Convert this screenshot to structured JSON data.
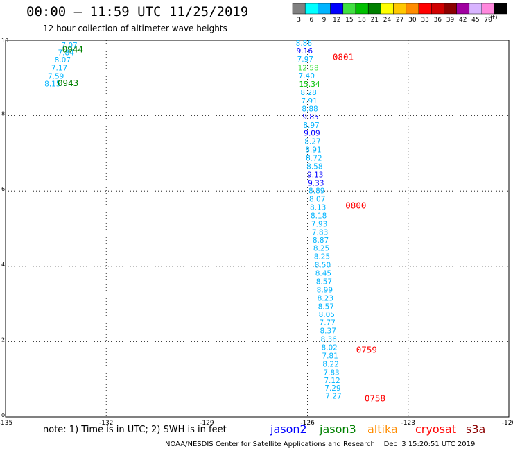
{
  "title": "00:00 — 11:59 UTC 11/25/2019",
  "subtitle": "12 hour collection of altimeter wave heights",
  "color_scale": {
    "units": "(ft)",
    "bins": [
      {
        "label": "3",
        "color": "#808080"
      },
      {
        "label": "6",
        "color": "#00ffff"
      },
      {
        "label": "9",
        "color": "#00b4ff"
      },
      {
        "label": "12",
        "color": "#0000ff"
      },
      {
        "label": "15",
        "color": "#40e040"
      },
      {
        "label": "18",
        "color": "#00c000"
      },
      {
        "label": "21",
        "color": "#008000"
      },
      {
        "label": "24",
        "color": "#ffff00"
      },
      {
        "label": "27",
        "color": "#ffc800"
      },
      {
        "label": "30",
        "color": "#ff8c00"
      },
      {
        "label": "33",
        "color": "#ff0000"
      },
      {
        "label": "36",
        "color": "#d00000"
      },
      {
        "label": "39",
        "color": "#8b0000"
      },
      {
        "label": "42",
        "color": "#a000a0"
      },
      {
        "label": "45",
        "color": "#d8b4ff"
      },
      {
        "label": "70",
        "color": "#ff88dd"
      },
      {
        "label": "",
        "color": "#000000"
      }
    ]
  },
  "note": "note: 1) Time is in UTC; 2) SWH is in feet",
  "satellites": [
    {
      "name": "jason2",
      "color": "#0000ff"
    },
    {
      "name": "jason3",
      "color": "#008000"
    },
    {
      "name": "altika",
      "color": "#ff8c00"
    },
    {
      "name": "cryosat",
      "color": "#ff0000"
    },
    {
      "name": "s3a",
      "color": "#8b0000"
    }
  ],
  "footer": "NOAA/NESDIS Center for Satellite Applications and Research    Dec  3 15:20:51 UTC 2019",
  "chart_data": {
    "type": "scatter",
    "xlim": [
      -135,
      -120
    ],
    "ylim": [
      0,
      10
    ],
    "x_ticks": [
      "-135",
      "-132",
      "-129",
      "-126",
      "-123",
      "-120"
    ],
    "y_ticks": [
      "0",
      "2",
      "4",
      "6",
      "8",
      "10"
    ],
    "grid": true,
    "points": [
      {
        "x": -133.34,
        "y": 9.87,
        "label": "7.07",
        "color": "#00b4ff"
      },
      {
        "x": -133.44,
        "y": 9.68,
        "label": "7.84",
        "color": "#00b4ff"
      },
      {
        "x": -133.54,
        "y": 9.48,
        "label": "8.07",
        "color": "#00b4ff"
      },
      {
        "x": -133.64,
        "y": 9.27,
        "label": "7.17",
        "color": "#00b4ff"
      },
      {
        "x": -133.74,
        "y": 9.05,
        "label": "7.59",
        "color": "#00b4ff"
      },
      {
        "x": -133.84,
        "y": 8.85,
        "label": "8.15",
        "color": "#00b4ff"
      },
      {
        "x": -126.35,
        "y": 9.93,
        "label": "8.86",
        "color": "#00b4ff"
      },
      {
        "x": -126.33,
        "y": 9.72,
        "label": "9.16",
        "color": "#0000ff"
      },
      {
        "x": -126.31,
        "y": 9.5,
        "label": "7.97",
        "color": "#00b4ff"
      },
      {
        "x": -126.29,
        "y": 9.27,
        "label": "12.58",
        "color": "#40e040"
      },
      {
        "x": -126.27,
        "y": 9.06,
        "label": "7.40",
        "color": "#00b4ff"
      },
      {
        "x": -126.25,
        "y": 8.84,
        "label": "15.34",
        "color": "#00c000"
      },
      {
        "x": -126.21,
        "y": 8.62,
        "label": "8.28",
        "color": "#00b4ff"
      },
      {
        "x": -126.19,
        "y": 8.4,
        "label": "7.91",
        "color": "#00b4ff"
      },
      {
        "x": -126.17,
        "y": 8.19,
        "label": "8.88",
        "color": "#00b4ff"
      },
      {
        "x": -126.15,
        "y": 7.97,
        "label": "9.85",
        "color": "#0000ff"
      },
      {
        "x": -126.13,
        "y": 7.75,
        "label": "8.97",
        "color": "#00b4ff"
      },
      {
        "x": -126.11,
        "y": 7.54,
        "label": "9.09",
        "color": "#0000ff"
      },
      {
        "x": -126.09,
        "y": 7.32,
        "label": "8.27",
        "color": "#00b4ff"
      },
      {
        "x": -126.07,
        "y": 7.1,
        "label": "8.91",
        "color": "#00b4ff"
      },
      {
        "x": -126.05,
        "y": 6.88,
        "label": "8.72",
        "color": "#00b4ff"
      },
      {
        "x": -126.03,
        "y": 6.66,
        "label": "8.58",
        "color": "#00b4ff"
      },
      {
        "x": -126.01,
        "y": 6.44,
        "label": "9.13",
        "color": "#0000ff"
      },
      {
        "x": -125.99,
        "y": 6.22,
        "label": "9.33",
        "color": "#0000ff"
      },
      {
        "x": -125.97,
        "y": 6.01,
        "label": "8.89",
        "color": "#00b4ff"
      },
      {
        "x": -125.95,
        "y": 5.79,
        "label": "8.07",
        "color": "#00b4ff"
      },
      {
        "x": -125.93,
        "y": 5.57,
        "label": "8.13",
        "color": "#00b4ff"
      },
      {
        "x": -125.91,
        "y": 5.35,
        "label": "8.18",
        "color": "#00b4ff"
      },
      {
        "x": -125.89,
        "y": 5.13,
        "label": "7.93",
        "color": "#00b4ff"
      },
      {
        "x": -125.87,
        "y": 4.91,
        "label": "7.83",
        "color": "#00b4ff"
      },
      {
        "x": -125.85,
        "y": 4.7,
        "label": "8.87",
        "color": "#00b4ff"
      },
      {
        "x": -125.83,
        "y": 4.48,
        "label": "8.25",
        "color": "#00b4ff"
      },
      {
        "x": -125.81,
        "y": 4.26,
        "label": "8.25",
        "color": "#00b4ff"
      },
      {
        "x": -125.79,
        "y": 4.04,
        "label": "8.50",
        "color": "#00b4ff"
      },
      {
        "x": -125.77,
        "y": 3.82,
        "label": "8.45",
        "color": "#00b4ff"
      },
      {
        "x": -125.75,
        "y": 3.6,
        "label": "8.57",
        "color": "#00b4ff"
      },
      {
        "x": -125.73,
        "y": 3.38,
        "label": "8.99",
        "color": "#00b4ff"
      },
      {
        "x": -125.71,
        "y": 3.16,
        "label": "8.23",
        "color": "#00b4ff"
      },
      {
        "x": -125.69,
        "y": 2.94,
        "label": "8.57",
        "color": "#00b4ff"
      },
      {
        "x": -125.67,
        "y": 2.73,
        "label": "8.05",
        "color": "#00b4ff"
      },
      {
        "x": -125.65,
        "y": 2.51,
        "label": "7.77",
        "color": "#00b4ff"
      },
      {
        "x": -125.63,
        "y": 2.29,
        "label": "8.37",
        "color": "#00b4ff"
      },
      {
        "x": -125.61,
        "y": 2.07,
        "label": "8.36",
        "color": "#00b4ff"
      },
      {
        "x": -125.59,
        "y": 1.85,
        "label": "8.02",
        "color": "#00b4ff"
      },
      {
        "x": -125.57,
        "y": 1.63,
        "label": "7.81",
        "color": "#00b4ff"
      },
      {
        "x": -125.55,
        "y": 1.41,
        "label": "8.22",
        "color": "#00b4ff"
      },
      {
        "x": -125.53,
        "y": 1.19,
        "label": "7.83",
        "color": "#00b4ff"
      },
      {
        "x": -125.51,
        "y": 0.98,
        "label": "7.12",
        "color": "#00b4ff"
      },
      {
        "x": -125.49,
        "y": 0.77,
        "label": "7.29",
        "color": "#00b4ff"
      },
      {
        "x": -125.47,
        "y": 0.56,
        "label": "7.27",
        "color": "#00b4ff"
      }
    ],
    "time_labels": [
      {
        "x": -133.31,
        "y": 9.77,
        "label": "0944",
        "color": "#008000"
      },
      {
        "x": -133.45,
        "y": 8.88,
        "label": "0943",
        "color": "#008000"
      },
      {
        "x": -125.25,
        "y": 9.57,
        "label": "0801",
        "color": "#ff0000"
      },
      {
        "x": -124.87,
        "y": 5.63,
        "label": "0800",
        "color": "#ff0000"
      },
      {
        "x": -124.55,
        "y": 1.8,
        "label": "0759",
        "color": "#ff0000"
      },
      {
        "x": -124.3,
        "y": 0.51,
        "label": "0758",
        "color": "#ff0000"
      }
    ]
  }
}
